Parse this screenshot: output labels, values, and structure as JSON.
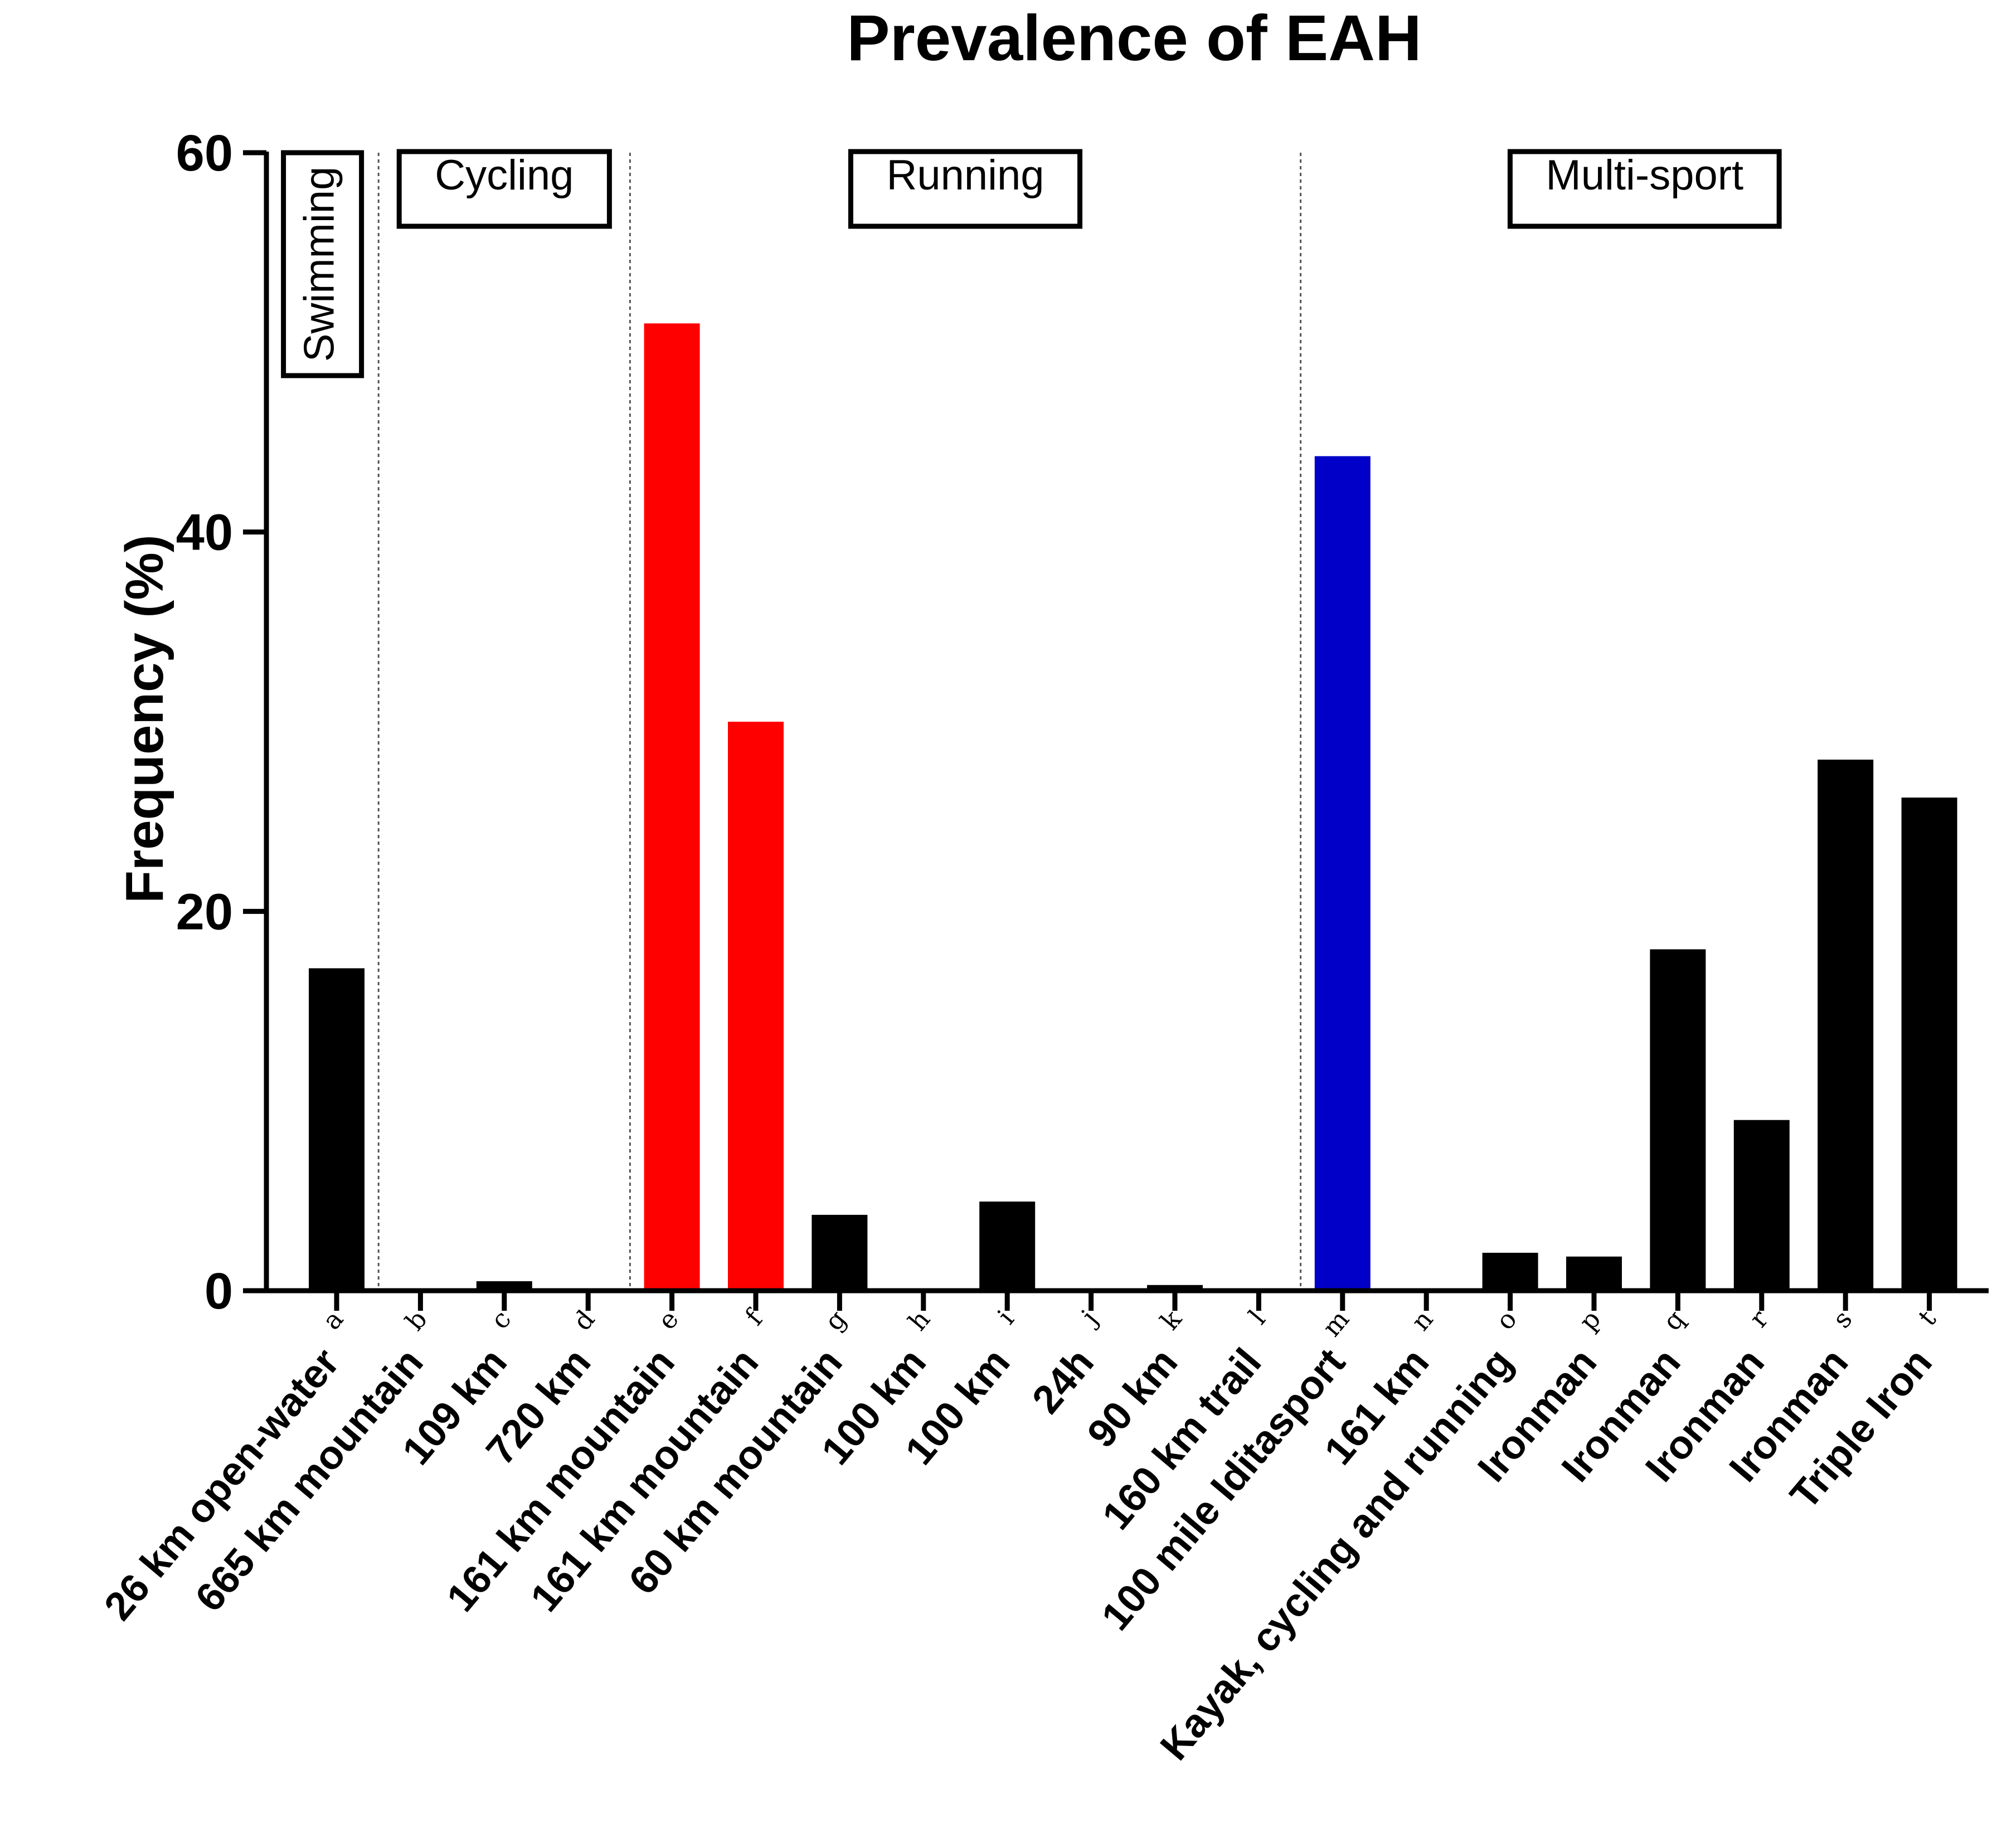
{
  "chart_data": {
    "type": "bar",
    "title": "Prevalence of EAH",
    "xlabel": "",
    "ylabel": "Frequency (%)",
    "ylim": [
      0,
      60
    ],
    "yticks": [
      0,
      20,
      40,
      60
    ],
    "grid": false,
    "legend": "none",
    "categories": [
      {
        "letter": "a",
        "label": "26 km open-water",
        "value": 17,
        "color": "#000000"
      },
      {
        "letter": "b",
        "label": "665 km mountain",
        "value": 0,
        "color": "#000000"
      },
      {
        "letter": "c",
        "label": "109 km",
        "value": 0.5,
        "color": "#000000"
      },
      {
        "letter": "d",
        "label": "720 km",
        "value": 0,
        "color": "#000000"
      },
      {
        "letter": "e",
        "label": "161 km mountain",
        "value": 51,
        "color": "#ff0000"
      },
      {
        "letter": "f",
        "label": "161 km mountain",
        "value": 30,
        "color": "#ff0000"
      },
      {
        "letter": "g",
        "label": "60 km mountain",
        "value": 4,
        "color": "#000000"
      },
      {
        "letter": "h",
        "label": "100 km",
        "value": 0,
        "color": "#000000"
      },
      {
        "letter": "i",
        "label": "100 km",
        "value": 4.7,
        "color": "#000000"
      },
      {
        "letter": "j",
        "label": "24h",
        "value": 0,
        "color": "#000000"
      },
      {
        "letter": "k",
        "label": "90 km",
        "value": 0.3,
        "color": "#000000"
      },
      {
        "letter": "l",
        "label": "160 km trail",
        "value": 0,
        "color": "#000000"
      },
      {
        "letter": "m",
        "label": "100 mile Iditasport",
        "value": 44,
        "color": "#0000c8"
      },
      {
        "letter": "n",
        "label": "161 km",
        "value": 0,
        "color": "#000000"
      },
      {
        "letter": "o",
        "label": "Kayak, cycling and running",
        "value": 2,
        "color": "#000000"
      },
      {
        "letter": "p",
        "label": "Ironman",
        "value": 1.8,
        "color": "#000000"
      },
      {
        "letter": "q",
        "label": "Ironman",
        "value": 18,
        "color": "#000000"
      },
      {
        "letter": "r",
        "label": "Ironman",
        "value": 9,
        "color": "#000000"
      },
      {
        "letter": "s",
        "label": "Ironman",
        "value": 28,
        "color": "#000000"
      },
      {
        "letter": "t",
        "label": "Triple Iron",
        "value": 26,
        "color": "#000000"
      }
    ],
    "groups": [
      {
        "label": "Swimming",
        "orientation": "vertical",
        "first": 0,
        "last": 0
      },
      {
        "label": "Cycling",
        "orientation": "horizontal",
        "first": 1,
        "last": 3
      },
      {
        "label": "Running",
        "orientation": "horizontal",
        "first": 4,
        "last": 11
      },
      {
        "label": "Multi-sport",
        "orientation": "horizontal",
        "first": 12,
        "last": 19
      }
    ]
  }
}
